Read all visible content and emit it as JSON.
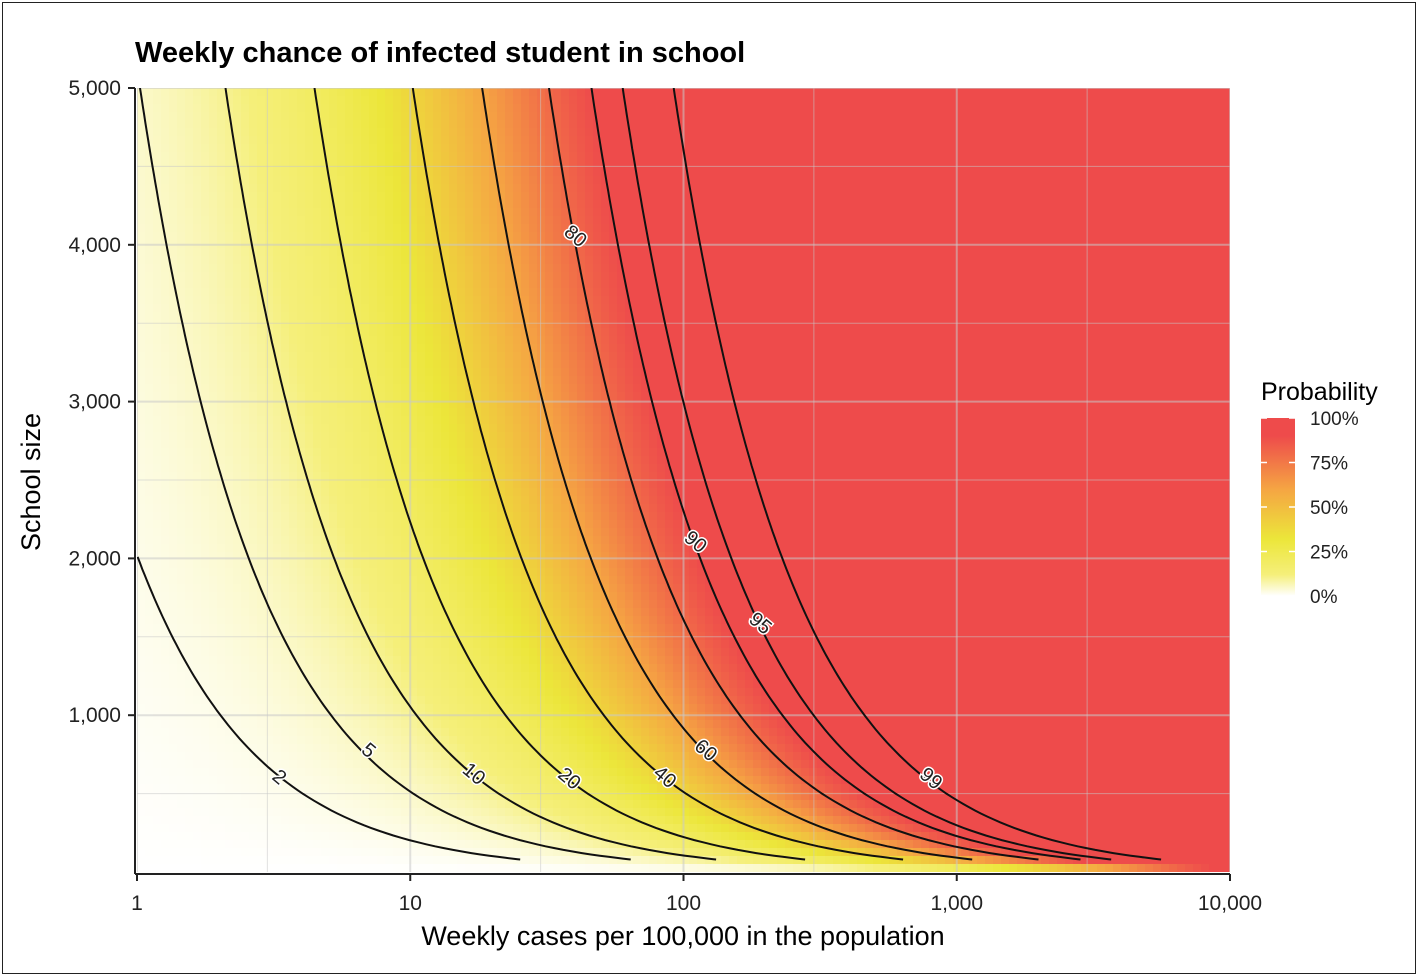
{
  "chart_data": {
    "type": "heatmap",
    "title": "Weekly chance of infected student in school",
    "xlabel": "Weekly cases per 100,000 in the population",
    "ylabel": "School size",
    "x_scale": "log10",
    "xlim": [
      1,
      10000
    ],
    "ylim": [
      50,
      5000
    ],
    "x_ticks": [
      1,
      10,
      100,
      1000,
      10000
    ],
    "x_tick_labels": [
      "1",
      "10",
      "100",
      "1,000",
      "10,000"
    ],
    "y_ticks": [
      1000,
      2000,
      3000,
      4000,
      5000
    ],
    "y_tick_labels": [
      "1,000",
      "2,000",
      "3,000",
      "4,000",
      "5,000"
    ],
    "grid": true,
    "fill": "Probability = 1 - (1 - cases/100000)^(school size)",
    "legend": {
      "title": "Probability",
      "placement": "right",
      "labels": [
        "100%",
        "75%",
        "50%",
        "25%",
        "0%"
      ],
      "values": [
        1.0,
        0.75,
        0.5,
        0.25,
        0.0
      ],
      "colors": [
        "#ffffff",
        "#f5ef7a",
        "#ece63a",
        "#f5a543",
        "#ee4b4b"
      ],
      "color_stops": [
        0.0,
        0.12,
        0.32,
        0.6,
        0.9
      ]
    },
    "contours": [
      {
        "label": "2",
        "level": 2,
        "label_at": [
          3.3,
          600
        ]
      },
      {
        "label": "5",
        "level": 5,
        "label_at": [
          7.0,
          770
        ]
      },
      {
        "label": "10",
        "level": 10,
        "label_at": [
          17.0,
          620
        ]
      },
      {
        "label": "20",
        "level": 20,
        "label_at": [
          38.0,
          590
        ]
      },
      {
        "label": "40",
        "level": 40,
        "label_at": [
          85.0,
          600
        ]
      },
      {
        "label": "60",
        "level": 60,
        "label_at": [
          120.0,
          770
        ]
      },
      {
        "label": "80",
        "level": 80,
        "label_at": [
          40.0,
          4050
        ]
      },
      {
        "label": "90",
        "level": 90,
        "label_at": [
          110.0,
          2100
        ]
      },
      {
        "label": "95",
        "level": 95,
        "label_at": [
          190.0,
          1580
        ]
      },
      {
        "label": "99",
        "level": 99,
        "label_at": [
          800.0,
          590
        ]
      }
    ]
  }
}
